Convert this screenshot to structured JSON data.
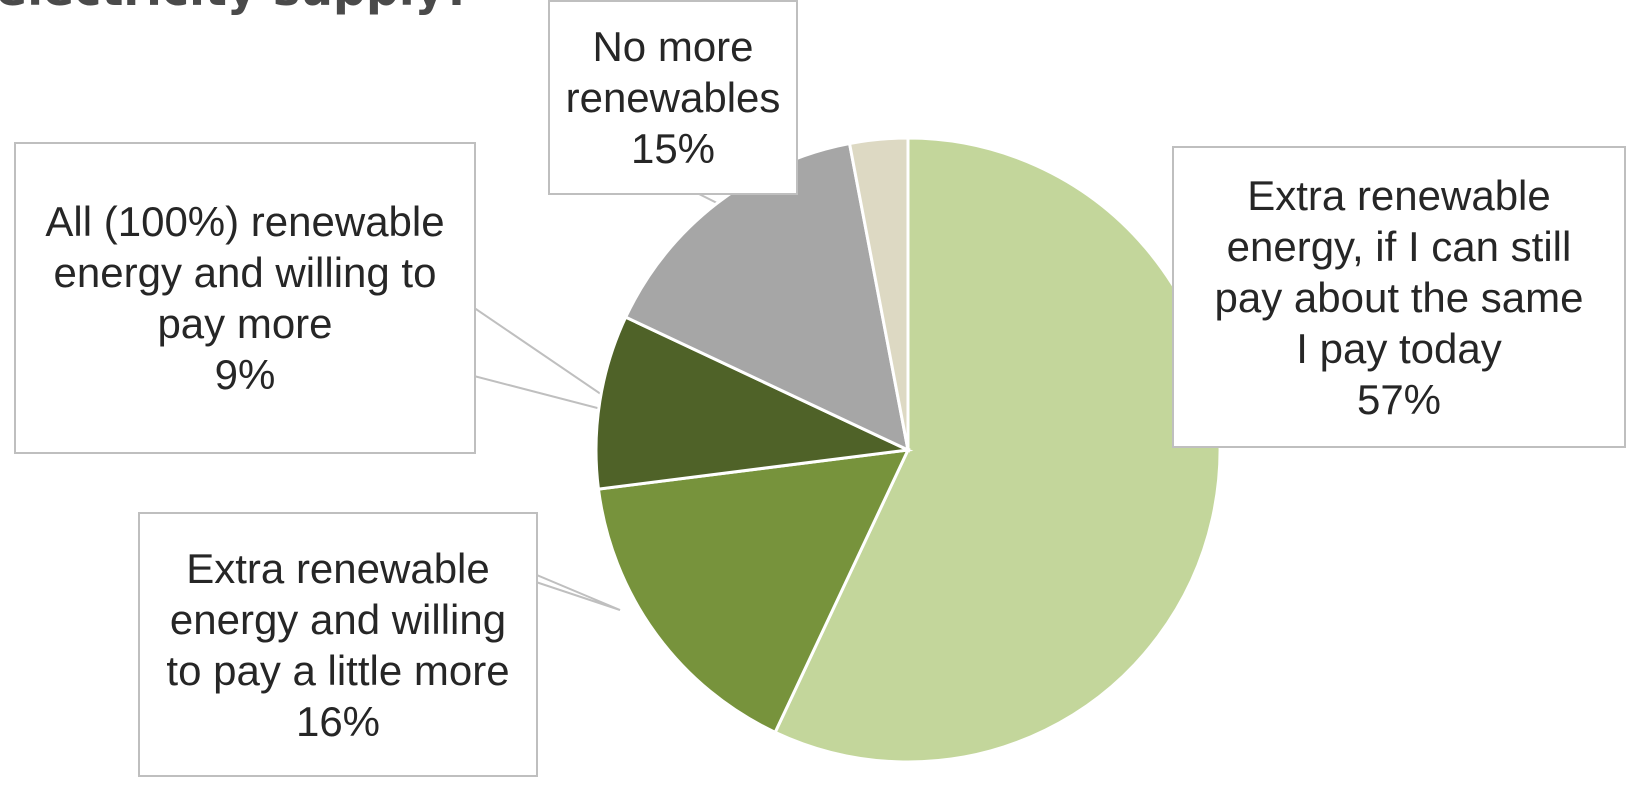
{
  "chart_data": {
    "type": "pie",
    "title": "electricity supply?",
    "slices": [
      {
        "lines": [
          "Extra renewable",
          "energy, if I can still",
          "pay about the same",
          "I pay today"
        ],
        "value": 57,
        "value_label": "57%",
        "color": "#c3d69b"
      },
      {
        "lines": [
          "Extra renewable",
          "energy and willing",
          "to pay a little more"
        ],
        "value": 16,
        "value_label": "16%",
        "color": "#77933c"
      },
      {
        "lines": [
          "All (100%) renewable",
          "energy and willing to",
          "pay more"
        ],
        "value": 9,
        "value_label": "9%",
        "color": "#4f6228"
      },
      {
        "lines": [
          "No more",
          "renewables"
        ],
        "value": 15,
        "value_label": "15%",
        "color": "#a6a6a6"
      },
      {
        "lines": [],
        "value": 3,
        "value_label": "",
        "color": "#ddd9c3"
      }
    ]
  }
}
